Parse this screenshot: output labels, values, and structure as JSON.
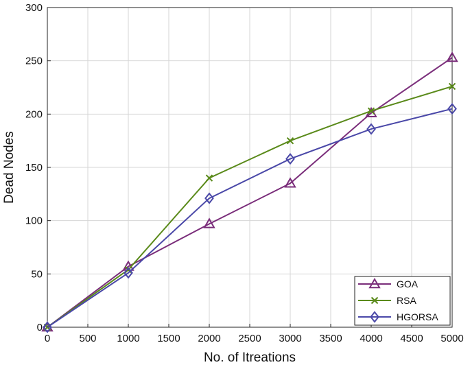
{
  "chart_data": {
    "type": "line",
    "title": "",
    "xlabel": "No. of Itreations",
    "ylabel": "Dead Nodes",
    "xlim": [
      0,
      5000
    ],
    "ylim": [
      0,
      300
    ],
    "xticks": [
      "0",
      "500",
      "1000",
      "1500",
      "2000",
      "2500",
      "3000",
      "3500",
      "4000",
      "4500",
      "5000"
    ],
    "yticks": [
      "0",
      "50",
      "100",
      "150",
      "200",
      "250",
      "300"
    ],
    "grid": true,
    "legend_position": "bottom-right",
    "x": [
      0,
      1000,
      2000,
      3000,
      4000,
      5000
    ],
    "series": [
      {
        "name": "GOA",
        "values": [
          0,
          57,
          97,
          135,
          201,
          253
        ],
        "color": "#7a2d7a",
        "marker": "triangle"
      },
      {
        "name": "RSA",
        "values": [
          0,
          54,
          140,
          175,
          203,
          226
        ],
        "color": "#5a8a1a",
        "marker": "x"
      },
      {
        "name": "HGORSA",
        "values": [
          0,
          51,
          121,
          158,
          186,
          205
        ],
        "color": "#4a48a8",
        "marker": "diamond"
      }
    ]
  }
}
